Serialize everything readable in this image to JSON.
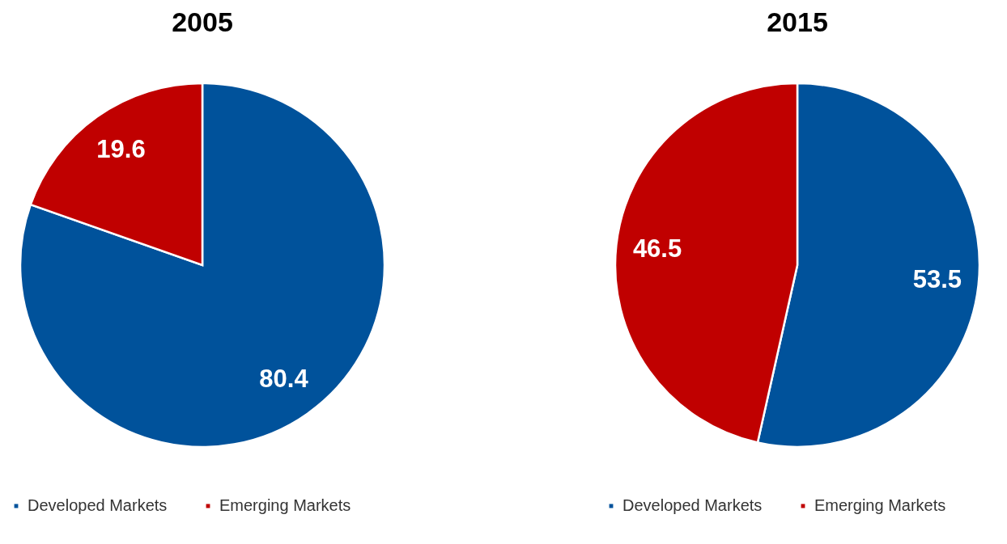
{
  "chart_data": [
    {
      "type": "pie",
      "title": "2005",
      "categories": [
        "Developed Markets",
        "Emerging Markets"
      ],
      "values": [
        80.4,
        19.6
      ],
      "colors": [
        "#00529b",
        "#c00000"
      ],
      "data_labels": true,
      "legend": "bottom"
    },
    {
      "type": "pie",
      "title": "2015",
      "categories": [
        "Developed Markets",
        "Emerging Markets"
      ],
      "values": [
        53.5,
        46.5
      ],
      "colors": [
        "#00529b",
        "#c00000"
      ],
      "data_labels": true,
      "legend": "bottom"
    }
  ]
}
